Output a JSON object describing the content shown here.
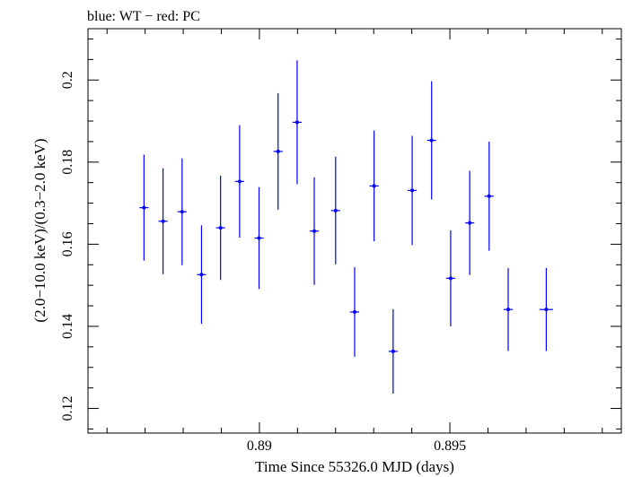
{
  "chart_data": {
    "type": "scatter",
    "title": "blue: WT − red: PC",
    "xlabel": "Time Since 55326.0 MJD (days)",
    "ylabel": "(2.0−10.0 keV)/(0.3−2.0 keV)",
    "xlim": [
      0.8855,
      0.8995
    ],
    "ylim": [
      0.114,
      0.2125
    ],
    "x_ticks_major": [
      0.89,
      0.895
    ],
    "x_tick_labels": [
      "0.89",
      "0.895"
    ],
    "x_ticks_minor_step": 0.001,
    "y_ticks_major": [
      0.12,
      0.14,
      0.16,
      0.18,
      0.2
    ],
    "y_tick_labels": [
      "0.12",
      "0.14",
      "0.16",
      "0.18",
      "0.2"
    ],
    "y_ticks_minor_step": 0.005,
    "grid": false,
    "series": [
      {
        "name": "WT",
        "color": "#0000ff",
        "x": [
          0.88697,
          0.88747,
          0.88797,
          0.88848,
          0.88898,
          0.88948,
          0.88999,
          0.89049,
          0.89099,
          0.89144,
          0.892,
          0.8925,
          0.89301,
          0.89351,
          0.89401,
          0.89452,
          0.89502,
          0.89552,
          0.89603,
          0.89653,
          0.89753
        ],
        "x_err": [
          0.00012,
          0.00012,
          0.00012,
          0.00012,
          0.00012,
          0.00012,
          0.00012,
          0.00012,
          0.00012,
          0.00012,
          0.00012,
          0.00012,
          0.00012,
          0.00012,
          0.00012,
          0.00012,
          0.00012,
          0.00012,
          0.00012,
          0.00012,
          0.00018
        ],
        "y": [
          0.1689,
          0.1656,
          0.1679,
          0.1526,
          0.164,
          0.1753,
          0.1615,
          0.1826,
          0.1897,
          0.1632,
          0.1682,
          0.1435,
          0.1742,
          0.1339,
          0.1731,
          0.1853,
          0.1517,
          0.1652,
          0.1717,
          0.1441,
          0.1441
        ],
        "y_err": [
          0.0129,
          0.0129,
          0.013,
          0.012,
          0.0127,
          0.0137,
          0.0124,
          0.0142,
          0.0151,
          0.0131,
          0.0131,
          0.0109,
          0.0135,
          0.0103,
          0.0133,
          0.0144,
          0.0117,
          0.0127,
          0.0133,
          0.0101,
          0.0101
        ]
      }
    ]
  }
}
